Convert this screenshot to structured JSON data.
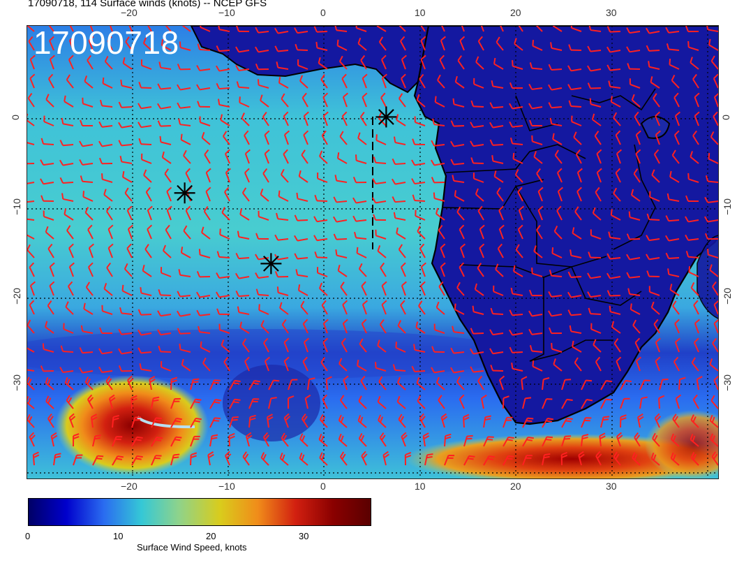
{
  "title": "17090718, 114 Surface winds (knots) -- NCEP GFS",
  "stamp": "17090718",
  "axes": {
    "lon_ticks": [
      "−20",
      "−10",
      "0",
      "10",
      "20",
      "30"
    ],
    "lat_ticks": [
      "0",
      "−10",
      "−20",
      "−30"
    ]
  },
  "colorbar": {
    "label": "Surface Wind Speed, knots",
    "ticks": [
      "0",
      "10",
      "20",
      "30"
    ],
    "range": [
      0,
      37
    ],
    "colors": [
      "#000066",
      "#0000cc",
      "#2a6cf0",
      "#35c8d6",
      "#8fd38a",
      "#d9cc1c",
      "#f08c1a",
      "#d22010",
      "#8a0000",
      "#5a0000"
    ]
  },
  "barb_color": "#ff2020",
  "storm_markers": [
    {
      "lon": 6.5,
      "lat": 0.2
    },
    {
      "lon": -14.5,
      "lat": -8.3
    },
    {
      "lon": -5.5,
      "lat": -16.2
    }
  ]
}
